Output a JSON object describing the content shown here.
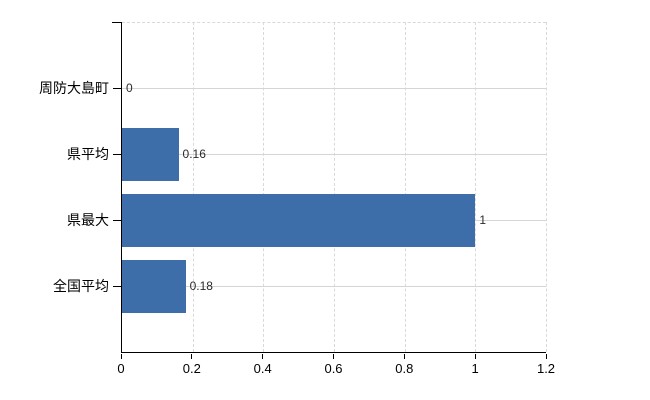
{
  "chart_data": {
    "type": "bar",
    "orientation": "horizontal",
    "title": "",
    "xlabel": "",
    "ylabel": "",
    "categories": [
      "周防大島町",
      "県平均",
      "県最大",
      "全国平均"
    ],
    "values": [
      0,
      0.16,
      1,
      0.18
    ],
    "value_labels": [
      "0",
      "0.16",
      "1",
      "0.18"
    ],
    "xlim": [
      0,
      1.2
    ],
    "xticks": [
      0,
      0.2,
      0.4,
      0.6,
      0.8,
      1,
      1.2
    ],
    "xtick_labels": [
      "0",
      "0.2",
      "0.4",
      "0.6",
      "0.8",
      "1",
      "1.2"
    ],
    "grid": true,
    "legend": false,
    "colors": {
      "bar": "#3e6ea9",
      "vertical_gridline": "#d9d9d9",
      "horizontal_gridline": "#d4d7d1",
      "axis": "#000000",
      "text": "#000000",
      "value_label": "#2b2b2b",
      "background": "#ffffff"
    }
  }
}
